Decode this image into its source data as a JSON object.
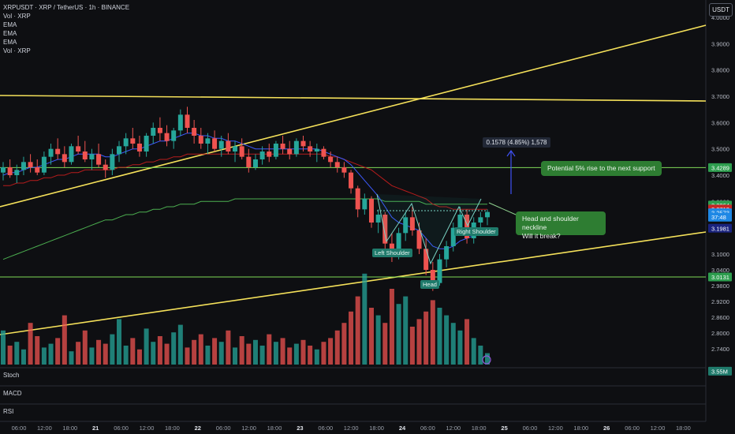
{
  "header": {
    "symbol": "XRPUSDT · XRP / TetherUS · 1h · BINANCE",
    "indicators": [
      "Vol · XRP",
      "EMA",
      "EMA",
      "EMA",
      "Vol · XRP"
    ],
    "currency_button": "USDT"
  },
  "panes": {
    "stoch": "Stoch",
    "macd": "MACD",
    "rsi": "RSI"
  },
  "annotations": {
    "measure": "0.1578 (4.85%) 1,578",
    "support_note": "Potential 5% rise to the next support",
    "neckline_note_line1": "Head and shoulder neckline",
    "neckline_note_line2": "Will it break?",
    "left_shoulder": "Left Shoulder",
    "right_shoulder": "Right Shoulder",
    "head": "Head"
  },
  "colors": {
    "up": "#26a69a",
    "down": "#ef5350",
    "trendline": "#f5e15a",
    "support": "#7ed957",
    "ema_blue": "#3d5afe",
    "ema_red": "#b71c1c",
    "ema_green": "#4caf50",
    "note_bg": "#2e7d32",
    "arrow": "#3f51f5"
  },
  "chart_data": {
    "type": "candlestick",
    "title": "XRPUSDT · XRP / TetherUS · 1h · BINANCE",
    "ylim": [
      2.68,
      4.0
    ],
    "price_ticks": [
      "4.0000",
      "3.9000",
      "3.8000",
      "3.7000",
      "3.6000",
      "3.5000",
      "3.4000",
      "3.3000",
      "3.1000",
      "3.0400",
      "2.9800",
      "2.9200",
      "2.8600",
      "2.8000",
      "2.7400"
    ],
    "price_tags": [
      {
        "label": "3.4289",
        "value": 3.4289,
        "color": "#2e9e4f"
      },
      {
        "label": "3.2864",
        "value": 3.2864,
        "color": "#2e9e4f"
      },
      {
        "label": "3.2712",
        "value": 3.2712,
        "color": "#c62828"
      },
      {
        "label": "3.2573",
        "value": 3.2573,
        "color": "#1e88e5"
      },
      {
        "label": "37:48",
        "value": 3.2403,
        "color": "#1e88e5"
      },
      {
        "label": "3.1981",
        "value": 3.1981,
        "color": "#1a237e"
      },
      {
        "label": "3.0131",
        "value": 3.0131,
        "color": "#2e9e4f"
      },
      {
        "label": "3.55M",
        "value": 2.655,
        "color": "#1f7a6b"
      }
    ],
    "time_ticks": [
      "06:00",
      "12:00",
      "18:00",
      "21",
      "06:00",
      "12:00",
      "18:00",
      "22",
      "06:00",
      "12:00",
      "18:00",
      "23",
      "06:00",
      "12:00",
      "18:00",
      "24",
      "06:00",
      "12:00",
      "18:00",
      "25",
      "06:00",
      "12:00",
      "18:00",
      "26",
      "06:00",
      "12:00",
      "18:00"
    ],
    "support_levels": [
      3.4289,
      3.0131
    ],
    "neckline": 3.265,
    "ohlc": [
      [
        3.41,
        3.45,
        3.38,
        3.43
      ],
      [
        3.43,
        3.46,
        3.39,
        3.4
      ],
      [
        3.4,
        3.44,
        3.37,
        3.42
      ],
      [
        3.42,
        3.47,
        3.4,
        3.45
      ],
      [
        3.45,
        3.48,
        3.41,
        3.43
      ],
      [
        3.43,
        3.46,
        3.4,
        3.41
      ],
      [
        3.41,
        3.49,
        3.4,
        3.47
      ],
      [
        3.47,
        3.52,
        3.44,
        3.5
      ],
      [
        3.5,
        3.54,
        3.46,
        3.48
      ],
      [
        3.48,
        3.51,
        3.43,
        3.45
      ],
      [
        3.45,
        3.52,
        3.44,
        3.51
      ],
      [
        3.51,
        3.55,
        3.48,
        3.49
      ],
      [
        3.49,
        3.53,
        3.45,
        3.46
      ],
      [
        3.46,
        3.5,
        3.42,
        3.48
      ],
      [
        3.48,
        3.52,
        3.43,
        3.44
      ],
      [
        3.44,
        3.46,
        3.39,
        3.42
      ],
      [
        3.42,
        3.5,
        3.4,
        3.48
      ],
      [
        3.48,
        3.53,
        3.45,
        3.51
      ],
      [
        3.51,
        3.56,
        3.48,
        3.54
      ],
      [
        3.54,
        3.58,
        3.5,
        3.52
      ],
      [
        3.52,
        3.55,
        3.47,
        3.49
      ],
      [
        3.49,
        3.56,
        3.47,
        3.55
      ],
      [
        3.55,
        3.6,
        3.52,
        3.58
      ],
      [
        3.58,
        3.62,
        3.53,
        3.56
      ],
      [
        3.56,
        3.59,
        3.51,
        3.53
      ],
      [
        3.53,
        3.58,
        3.5,
        3.57
      ],
      [
        3.57,
        3.65,
        3.55,
        3.63
      ],
      [
        3.63,
        3.66,
        3.56,
        3.58
      ],
      [
        3.58,
        3.61,
        3.52,
        3.55
      ],
      [
        3.55,
        3.58,
        3.5,
        3.52
      ],
      [
        3.52,
        3.56,
        3.48,
        3.54
      ],
      [
        3.54,
        3.57,
        3.49,
        3.5
      ],
      [
        3.5,
        3.55,
        3.47,
        3.53
      ],
      [
        3.53,
        3.56,
        3.48,
        3.49
      ],
      [
        3.49,
        3.53,
        3.45,
        3.51
      ],
      [
        3.51,
        3.54,
        3.46,
        3.47
      ],
      [
        3.47,
        3.5,
        3.41,
        3.43
      ],
      [
        3.43,
        3.48,
        3.42,
        3.46
      ],
      [
        3.46,
        3.51,
        3.44,
        3.49
      ],
      [
        3.49,
        3.52,
        3.45,
        3.47
      ],
      [
        3.47,
        3.53,
        3.46,
        3.52
      ],
      [
        3.52,
        3.55,
        3.48,
        3.5
      ],
      [
        3.5,
        3.53,
        3.46,
        3.48
      ],
      [
        3.48,
        3.54,
        3.47,
        3.53
      ],
      [
        3.53,
        3.55,
        3.49,
        3.51
      ],
      [
        3.51,
        3.53,
        3.47,
        3.49
      ],
      [
        3.49,
        3.52,
        3.45,
        3.5
      ],
      [
        3.5,
        3.51,
        3.46,
        3.47
      ],
      [
        3.47,
        3.49,
        3.43,
        3.45
      ],
      [
        3.45,
        3.47,
        3.41,
        3.43
      ],
      [
        3.43,
        3.45,
        3.39,
        3.41
      ],
      [
        3.41,
        3.42,
        3.33,
        3.35
      ],
      [
        3.35,
        3.36,
        3.24,
        3.27
      ],
      [
        3.27,
        3.33,
        3.25,
        3.31
      ],
      [
        3.31,
        3.32,
        3.2,
        3.22
      ],
      [
        3.22,
        3.27,
        3.18,
        3.25
      ],
      [
        3.25,
        3.26,
        3.12,
        3.14
      ],
      [
        3.14,
        3.18,
        3.07,
        3.09
      ],
      [
        3.09,
        3.2,
        3.08,
        3.18
      ],
      [
        3.18,
        3.26,
        3.15,
        3.24
      ],
      [
        3.24,
        3.28,
        3.17,
        3.19
      ],
      [
        3.19,
        3.22,
        3.1,
        3.12
      ],
      [
        3.12,
        3.16,
        3.02,
        3.04
      ],
      [
        3.04,
        3.07,
        2.96,
        2.99
      ],
      [
        2.99,
        3.1,
        2.98,
        3.08
      ],
      [
        3.08,
        3.15,
        3.05,
        3.13
      ],
      [
        3.13,
        3.22,
        3.11,
        3.2
      ],
      [
        3.2,
        3.28,
        3.17,
        3.25
      ],
      [
        3.25,
        3.27,
        3.14,
        3.16
      ],
      [
        3.16,
        3.24,
        3.14,
        3.22
      ],
      [
        3.22,
        3.26,
        3.19,
        3.24
      ],
      [
        3.24,
        3.27,
        3.21,
        3.26
      ]
    ],
    "volume": [
      18,
      10,
      12,
      8,
      22,
      15,
      9,
      11,
      14,
      26,
      7,
      12,
      18,
      9,
      13,
      11,
      16,
      24,
      10,
      14,
      8,
      19,
      12,
      15,
      11,
      17,
      21,
      9,
      13,
      16,
      10,
      14,
      12,
      18,
      9,
      15,
      11,
      13,
      10,
      16,
      12,
      14,
      9,
      11,
      13,
      10,
      8,
      12,
      14,
      18,
      22,
      28,
      36,
      48,
      30,
      26,
      22,
      40,
      32,
      36,
      20,
      24,
      28,
      34,
      30,
      26,
      22,
      18,
      24,
      14,
      10,
      6
    ],
    "ema_fast": [
      3.4,
      3.41,
      3.41,
      3.42,
      3.43,
      3.43,
      3.44,
      3.45,
      3.46,
      3.46,
      3.47,
      3.48,
      3.48,
      3.48,
      3.48,
      3.47,
      3.47,
      3.48,
      3.49,
      3.5,
      3.5,
      3.51,
      3.52,
      3.53,
      3.53,
      3.54,
      3.55,
      3.56,
      3.56,
      3.55,
      3.55,
      3.54,
      3.54,
      3.53,
      3.53,
      3.52,
      3.51,
      3.5,
      3.5,
      3.5,
      3.5,
      3.5,
      3.5,
      3.5,
      3.5,
      3.5,
      3.5,
      3.49,
      3.48,
      3.47,
      3.46,
      3.44,
      3.41,
      3.38,
      3.35,
      3.32,
      3.28,
      3.24,
      3.22,
      3.21,
      3.2,
      3.19,
      3.16,
      3.13,
      3.12,
      3.12,
      3.13,
      3.15,
      3.16,
      3.17,
      3.18,
      3.19
    ],
    "ema_mid": [
      3.36,
      3.36,
      3.37,
      3.37,
      3.38,
      3.38,
      3.39,
      3.39,
      3.4,
      3.4,
      3.41,
      3.41,
      3.42,
      3.42,
      3.42,
      3.42,
      3.42,
      3.43,
      3.43,
      3.44,
      3.44,
      3.45,
      3.45,
      3.46,
      3.46,
      3.47,
      3.47,
      3.48,
      3.48,
      3.48,
      3.48,
      3.48,
      3.48,
      3.48,
      3.48,
      3.48,
      3.48,
      3.48,
      3.48,
      3.48,
      3.48,
      3.48,
      3.48,
      3.48,
      3.48,
      3.48,
      3.48,
      3.48,
      3.47,
      3.47,
      3.46,
      3.45,
      3.44,
      3.43,
      3.42,
      3.4,
      3.38,
      3.36,
      3.35,
      3.34,
      3.33,
      3.32,
      3.31,
      3.29,
      3.28,
      3.28,
      3.27,
      3.27,
      3.27,
      3.27,
      3.27,
      3.27
    ],
    "ema_slow": [
      3.08,
      3.09,
      3.1,
      3.11,
      3.12,
      3.13,
      3.14,
      3.15,
      3.16,
      3.17,
      3.18,
      3.19,
      3.2,
      3.21,
      3.22,
      3.23,
      3.23,
      3.24,
      3.25,
      3.25,
      3.26,
      3.26,
      3.27,
      3.27,
      3.28,
      3.28,
      3.29,
      3.29,
      3.29,
      3.3,
      3.3,
      3.3,
      3.3,
      3.3,
      3.31,
      3.31,
      3.31,
      3.31,
      3.31,
      3.31,
      3.31,
      3.31,
      3.31,
      3.31,
      3.31,
      3.31,
      3.31,
      3.31,
      3.31,
      3.31,
      3.31,
      3.31,
      3.31,
      3.31,
      3.31,
      3.31,
      3.3,
      3.3,
      3.3,
      3.3,
      3.3,
      3.3,
      3.29,
      3.29,
      3.29,
      3.29,
      3.29,
      3.29,
      3.29,
      3.29,
      3.29,
      3.29
    ]
  }
}
